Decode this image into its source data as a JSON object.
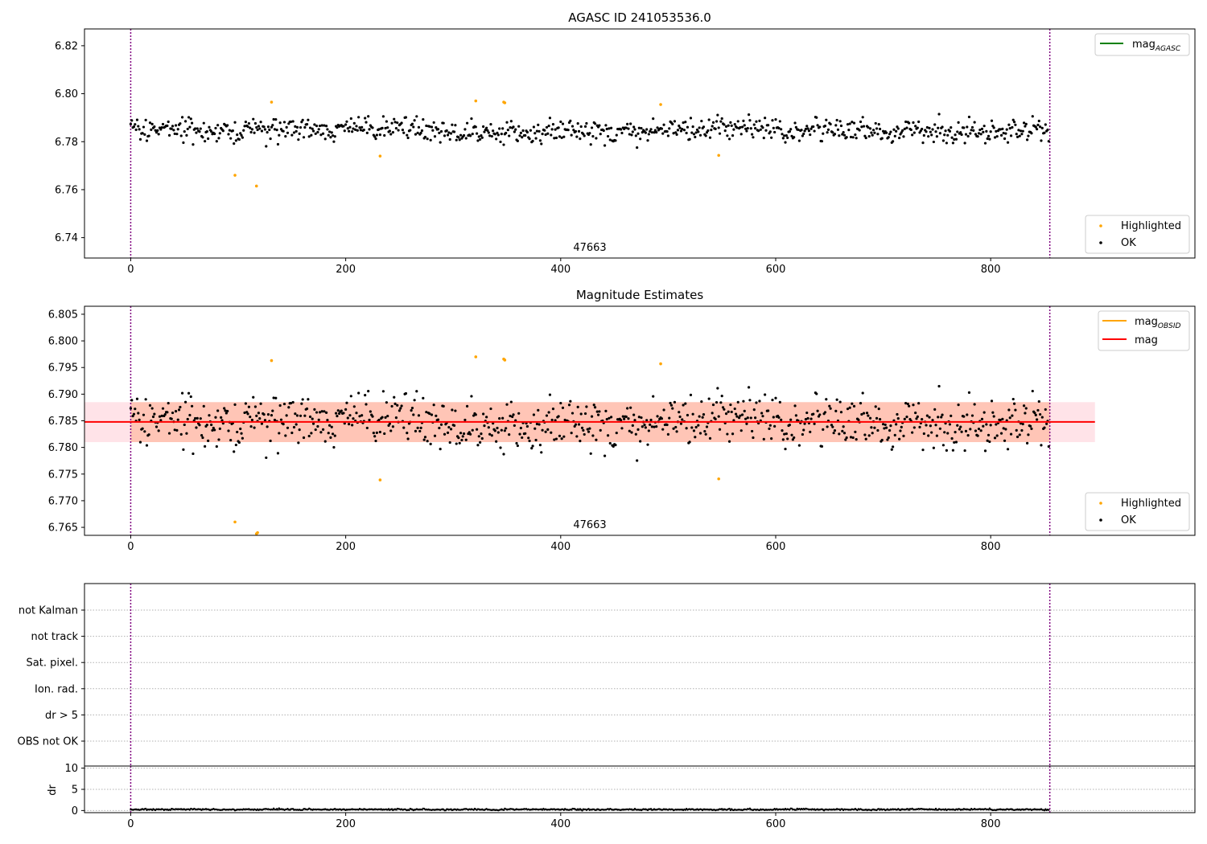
{
  "chart_data": [
    {
      "type": "scatter",
      "title": "AGASC ID 241053536.0",
      "xlim": [
        -43,
        990
      ],
      "ylim": [
        6.7315,
        6.827
      ],
      "xticks": [
        "0",
        "200",
        "400",
        "600",
        "800"
      ],
      "yticks": [
        "6.74",
        "6.76",
        "6.78",
        "6.80",
        "6.82"
      ],
      "annotation": "47663",
      "vlines": [
        0,
        855
      ],
      "legend_line": {
        "label": "mag",
        "subscript": "AGASC",
        "color": "#008000"
      },
      "legend_points": [
        {
          "label": "Highlighted",
          "color": "#ffa500"
        },
        {
          "label": "OK",
          "color": "#000000"
        }
      ],
      "series": [
        {
          "name": "Highlighted",
          "color": "#ffa500",
          "points": [
            [
              97,
              6.766
            ],
            [
              117,
              6.7615
            ],
            [
              131,
              6.7965
            ],
            [
              232,
              6.774
            ],
            [
              321,
              6.797
            ],
            [
              347,
              6.7965
            ],
            [
              348,
              6.7962
            ],
            [
              493,
              6.7955
            ],
            [
              547,
              6.7743
            ]
          ]
        },
        {
          "name": "OK",
          "color": "#000000",
          "n_points": 855,
          "mean": 6.7848,
          "spread": 0.0042
        }
      ]
    },
    {
      "type": "scatter",
      "title": "Magnitude Estimates",
      "xlim": [
        -43,
        990
      ],
      "ylim": [
        6.7635,
        6.8065
      ],
      "xticks": [
        "0",
        "200",
        "400",
        "600",
        "800"
      ],
      "yticks": [
        "6.765",
        "6.770",
        "6.775",
        "6.780",
        "6.785",
        "6.790",
        "6.795",
        "6.800",
        "6.805"
      ],
      "annotation": "47663",
      "vlines": [
        0,
        855
      ],
      "mag_line": 6.7848,
      "band_outer": [
        6.781,
        6.7885,
        -43,
        897
      ],
      "band_inner": [
        6.781,
        6.7885,
        0,
        855
      ],
      "legend_lines": [
        {
          "label": "mag",
          "subscript": "OBSID",
          "color": "#ffa500"
        },
        {
          "label": "mag",
          "subscript": "",
          "color": "#ff0000"
        }
      ],
      "legend_points": [
        {
          "label": "Highlighted",
          "color": "#ffa500"
        },
        {
          "label": "OK",
          "color": "#000000"
        }
      ],
      "series": [
        {
          "name": "Highlighted",
          "color": "#ffa500",
          "points": [
            [
              97,
              6.766
            ],
            [
              117,
              6.7638
            ],
            [
              118,
              6.764
            ],
            [
              131,
              6.7963
            ],
            [
              232,
              6.7739
            ],
            [
              321,
              6.797
            ],
            [
              347,
              6.7966
            ],
            [
              348,
              6.7964
            ],
            [
              493,
              6.7957
            ],
            [
              547,
              6.7741
            ]
          ]
        },
        {
          "name": "OK",
          "color": "#000000",
          "n_points": 855,
          "mean": 6.7848,
          "spread": 0.0042
        }
      ]
    },
    {
      "type": "scatter",
      "xlim": [
        -43,
        990
      ],
      "categories": [
        "not Kalman",
        "not track",
        "Sat. pixel.",
        "Ion. rad.",
        "dr > 5",
        "OBS not OK"
      ],
      "vlines": [
        0,
        855
      ]
    },
    {
      "type": "line",
      "ylabel": "dr",
      "xlim": [
        -43,
        990
      ],
      "ylim": [
        -0.5,
        10.5
      ],
      "xticks": [
        "0",
        "200",
        "400",
        "600",
        "800"
      ],
      "yticks": [
        "0",
        "5",
        "10"
      ],
      "vlines": [
        0,
        855
      ],
      "series": [
        {
          "color": "#000000",
          "n_points": 855,
          "mean": 0.25,
          "spread": 0.15
        }
      ]
    }
  ]
}
